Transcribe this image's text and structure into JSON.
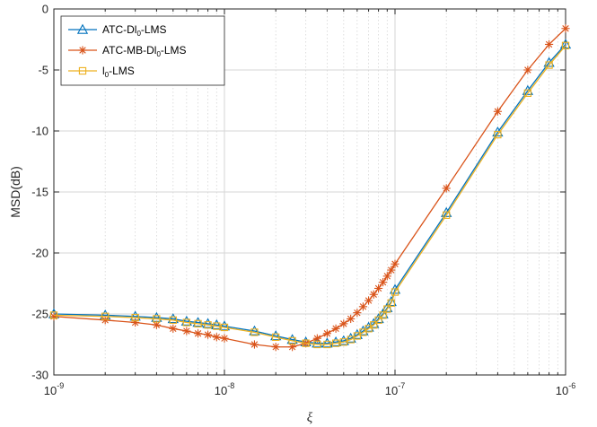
{
  "chart_data": {
    "type": "line",
    "xscale": "log",
    "xlabel": "ξ",
    "ylabel": "MSD(dB)",
    "xlim": [
      1e-09,
      1e-06
    ],
    "ylim": [
      -30,
      0
    ],
    "grid": true,
    "legend_position": "top-left",
    "x_tick_labels": [
      {
        "base": "10",
        "exp": "-9"
      },
      {
        "base": "10",
        "exp": "-8"
      },
      {
        "base": "10",
        "exp": "-7"
      },
      {
        "base": "10",
        "exp": "-6"
      }
    ],
    "y_ticks": [
      0,
      -5,
      -10,
      -15,
      -20,
      -25,
      -30
    ],
    "y_tick_labels": [
      "0",
      "-5",
      "-10",
      "-15",
      "-20",
      "-25",
      "-30"
    ],
    "x": [
      1e-09,
      2e-09,
      3e-09,
      4e-09,
      5e-09,
      6e-09,
      7e-09,
      8e-09,
      9e-09,
      1e-08,
      1.5e-08,
      2e-08,
      2.5e-08,
      3e-08,
      3.5e-08,
      4e-08,
      4.5e-08,
      5e-08,
      5.5e-08,
      6e-08,
      6.5e-08,
      7e-08,
      7.5e-08,
      8e-08,
      8.5e-08,
      9e-08,
      9.5e-08,
      1e-07,
      2e-07,
      4e-07,
      6e-07,
      8e-07,
      1e-06
    ],
    "series": [
      {
        "name": "ATC-Dl0-LMS",
        "legend": {
          "prefix": "ATC-Dl",
          "sub": "0",
          "suffix": "-LMS"
        },
        "color": "#0072BD",
        "marker": "triangle",
        "values": [
          -25.0,
          -25.1,
          -25.2,
          -25.3,
          -25.4,
          -25.6,
          -25.7,
          -25.8,
          -25.9,
          -26.0,
          -26.4,
          -26.8,
          -27.1,
          -27.3,
          -27.4,
          -27.4,
          -27.3,
          -27.2,
          -27.0,
          -26.7,
          -26.4,
          -26.1,
          -25.8,
          -25.4,
          -25.0,
          -24.5,
          -24.0,
          -23.0,
          -16.7,
          -10.1,
          -6.7,
          -4.4,
          -2.9
        ]
      },
      {
        "name": "ATC-MB-Dl0-LMS",
        "legend": {
          "prefix": "ATC-MB-Dl",
          "sub": "0",
          "suffix": "-LMS"
        },
        "color": "#D95319",
        "marker": "asterisk",
        "values": [
          -25.2,
          -25.5,
          -25.7,
          -25.9,
          -26.2,
          -26.4,
          -26.6,
          -26.7,
          -26.9,
          -27.0,
          -27.5,
          -27.7,
          -27.7,
          -27.4,
          -27.0,
          -26.6,
          -26.2,
          -25.8,
          -25.4,
          -24.9,
          -24.4,
          -23.9,
          -23.4,
          -22.9,
          -22.4,
          -21.9,
          -21.4,
          -20.9,
          -14.7,
          -8.4,
          -5.0,
          -2.9,
          -1.6
        ]
      },
      {
        "name": "l0-LMS",
        "legend": {
          "prefix": "l",
          "sub": "0",
          "suffix": "-LMS"
        },
        "color": "#EDB120",
        "marker": "square",
        "values": [
          -25.1,
          -25.2,
          -25.3,
          -25.4,
          -25.5,
          -25.7,
          -25.8,
          -25.9,
          -26.0,
          -26.1,
          -26.5,
          -26.9,
          -27.2,
          -27.4,
          -27.5,
          -27.5,
          -27.4,
          -27.3,
          -27.1,
          -26.8,
          -26.5,
          -26.2,
          -25.9,
          -25.5,
          -25.1,
          -24.6,
          -24.1,
          -23.2,
          -16.9,
          -10.3,
          -6.9,
          -4.6,
          -3.0
        ]
      }
    ]
  }
}
